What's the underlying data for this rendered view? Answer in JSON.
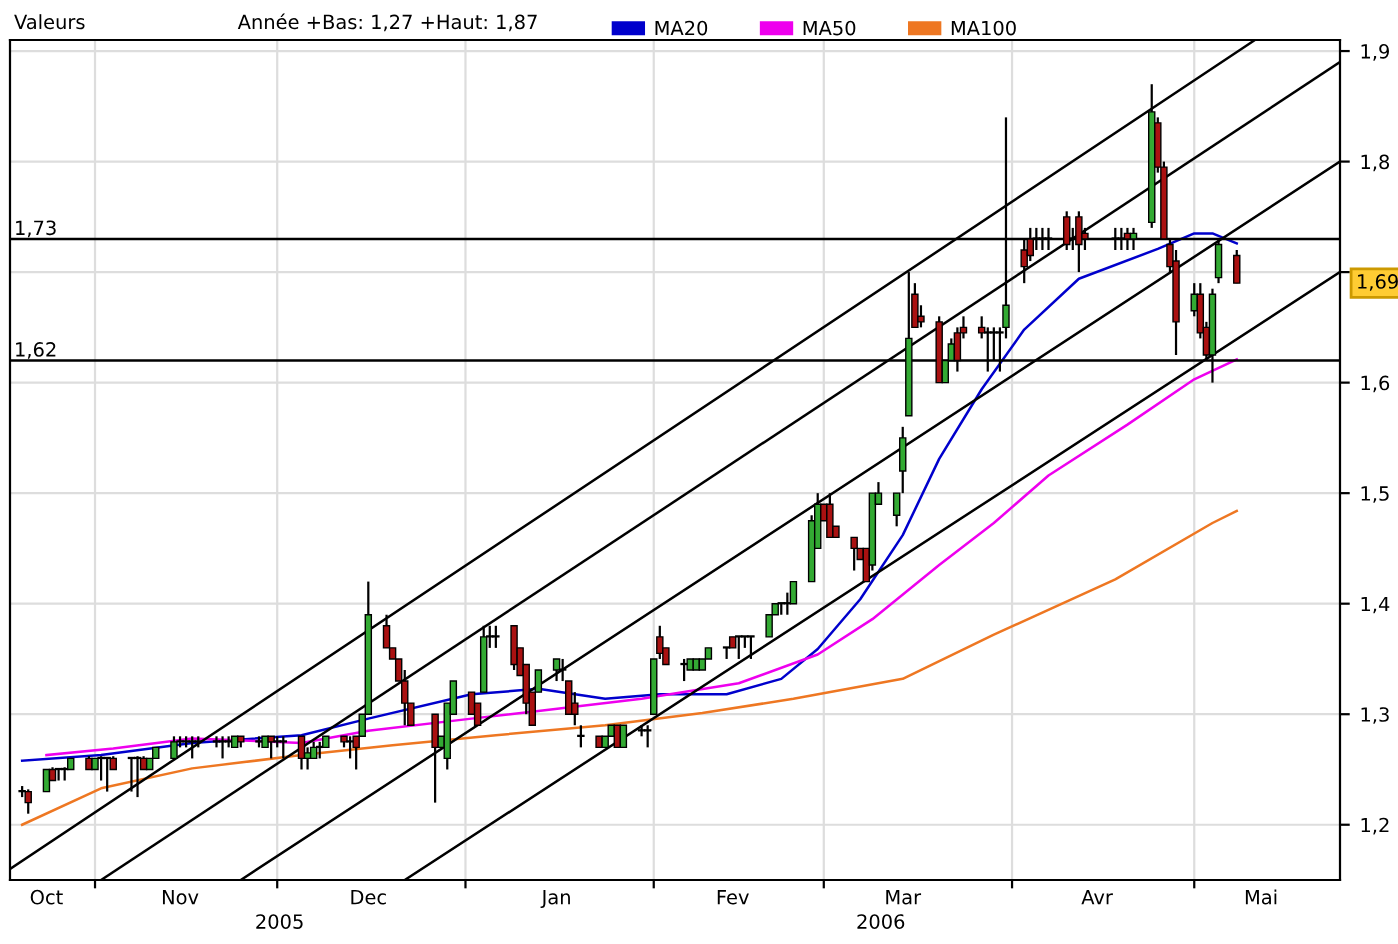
{
  "chart_data": {
    "type": "candlestick",
    "x": [
      "2005-10-20",
      "2005-10-21",
      "2005-10-24",
      "2005-10-25",
      "2005-10-26",
      "2005-10-27",
      "2005-10-28",
      "2005-10-31",
      "2005-11-01",
      "2005-11-02",
      "2005-11-03",
      "2005-11-04",
      "2005-11-07",
      "2005-11-08",
      "2005-11-09",
      "2005-11-10",
      "2005-11-11",
      "2005-11-14",
      "2005-11-15",
      "2005-11-16",
      "2005-11-17",
      "2005-11-18",
      "2005-11-21",
      "2005-11-22",
      "2005-11-23",
      "2005-11-24",
      "2005-11-25",
      "2005-11-28",
      "2005-11-29",
      "2005-11-30",
      "2005-12-01",
      "2005-12-02",
      "2005-12-05",
      "2005-12-06",
      "2005-12-07",
      "2005-12-08",
      "2005-12-09",
      "2005-12-12",
      "2005-12-13",
      "2005-12-14",
      "2005-12-15",
      "2005-12-16",
      "2005-12-19",
      "2005-12-20",
      "2005-12-21",
      "2005-12-22",
      "2005-12-23",
      "2005-12-27",
      "2005-12-28",
      "2005-12-29",
      "2005-12-30",
      "2006-01-02",
      "2006-01-03",
      "2006-01-04",
      "2006-01-05",
      "2006-01-06",
      "2006-01-09",
      "2006-01-10",
      "2006-01-11",
      "2006-01-12",
      "2006-01-13",
      "2006-01-16",
      "2006-01-17",
      "2006-01-18",
      "2006-01-19",
      "2006-01-20",
      "2006-01-23",
      "2006-01-24",
      "2006-01-25",
      "2006-01-26",
      "2006-01-27",
      "2006-01-30",
      "2006-01-31",
      "2006-02-01",
      "2006-02-02",
      "2006-02-03",
      "2006-02-06",
      "2006-02-07",
      "2006-02-08",
      "2006-02-09",
      "2006-02-10",
      "2006-02-13",
      "2006-02-14",
      "2006-02-15",
      "2006-02-16",
      "2006-02-17",
      "2006-02-20",
      "2006-02-21",
      "2006-02-22",
      "2006-02-23",
      "2006-02-24",
      "2006-02-27",
      "2006-02-28",
      "2006-03-01",
      "2006-03-02",
      "2006-03-03",
      "2006-03-06",
      "2006-03-07",
      "2006-03-08",
      "2006-03-09",
      "2006-03-10",
      "2006-03-13",
      "2006-03-14",
      "2006-03-15",
      "2006-03-16",
      "2006-03-17",
      "2006-03-20",
      "2006-03-21",
      "2006-03-22",
      "2006-03-23",
      "2006-03-24",
      "2006-03-27",
      "2006-03-28",
      "2006-03-29",
      "2006-03-30",
      "2006-03-31",
      "2006-04-03",
      "2006-04-04",
      "2006-04-05",
      "2006-04-06",
      "2006-04-07",
      "2006-04-10",
      "2006-04-11",
      "2006-04-12",
      "2006-04-13",
      "2006-04-18",
      "2006-04-19",
      "2006-04-20",
      "2006-04-21",
      "2006-04-24",
      "2006-04-25",
      "2006-04-26",
      "2006-04-27",
      "2006-04-28",
      "2006-05-01",
      "2006-05-02",
      "2006-05-03",
      "2006-05-04",
      "2006-05-05",
      "2006-05-08"
    ],
    "ohlc": [
      [
        1.23,
        1.235,
        1.225,
        1.23
      ],
      [
        1.23,
        1.232,
        1.21,
        1.22
      ],
      [
        1.23,
        1.25,
        1.23,
        1.25
      ],
      [
        1.25,
        1.252,
        1.24,
        1.24
      ],
      [
        1.25,
        1.25,
        1.24,
        1.25
      ],
      [
        1.25,
        1.252,
        1.24,
        1.25
      ],
      [
        1.25,
        1.26,
        1.25,
        1.26
      ],
      [
        1.26,
        1.262,
        1.25,
        1.25
      ],
      [
        1.25,
        1.26,
        1.25,
        1.26
      ],
      [
        1.26,
        1.262,
        1.24,
        1.26
      ],
      [
        1.26,
        1.26,
        1.23,
        1.26
      ],
      [
        1.26,
        1.262,
        1.25,
        1.25
      ],
      [
        1.26,
        1.26,
        1.23,
        1.26
      ],
      [
        1.26,
        1.262,
        1.225,
        1.26
      ],
      [
        1.26,
        1.262,
        1.25,
        1.25
      ],
      [
        1.25,
        1.26,
        1.25,
        1.26
      ],
      [
        1.26,
        1.27,
        1.26,
        1.27
      ],
      [
        1.26,
        1.28,
        1.26,
        1.275
      ],
      [
        1.275,
        1.28,
        1.27,
        1.275
      ],
      [
        1.275,
        1.28,
        1.27,
        1.275
      ],
      [
        1.275,
        1.28,
        1.26,
        1.275
      ],
      [
        1.275,
        1.28,
        1.27,
        1.275
      ],
      [
        1.275,
        1.28,
        1.27,
        1.275
      ],
      [
        1.275,
        1.28,
        1.26,
        1.275
      ],
      [
        1.275,
        1.28,
        1.27,
        1.275
      ],
      [
        1.27,
        1.28,
        1.27,
        1.28
      ],
      [
        1.28,
        1.28,
        1.27,
        1.275
      ],
      [
        1.275,
        1.28,
        1.27,
        1.275
      ],
      [
        1.27,
        1.28,
        1.27,
        1.28
      ],
      [
        1.28,
        1.28,
        1.26,
        1.275
      ],
      [
        1.275,
        1.28,
        1.27,
        1.275
      ],
      [
        1.275,
        1.28,
        1.26,
        1.275
      ],
      [
        1.28,
        1.28,
        1.25,
        1.26
      ],
      [
        1.26,
        1.27,
        1.25,
        1.265
      ],
      [
        1.26,
        1.275,
        1.26,
        1.27
      ],
      [
        1.27,
        1.275,
        1.26,
        1.27
      ],
      [
        1.27,
        1.28,
        1.27,
        1.28
      ],
      [
        1.28,
        1.28,
        1.27,
        1.275
      ],
      [
        1.275,
        1.28,
        1.26,
        1.275
      ],
      [
        1.28,
        1.28,
        1.25,
        1.27
      ],
      [
        1.28,
        1.3,
        1.28,
        1.3
      ],
      [
        1.3,
        1.42,
        1.3,
        1.39
      ],
      [
        1.38,
        1.39,
        1.36,
        1.36
      ],
      [
        1.36,
        1.36,
        1.35,
        1.35
      ],
      [
        1.35,
        1.35,
        1.33,
        1.33
      ],
      [
        1.33,
        1.34,
        1.29,
        1.31
      ],
      [
        1.31,
        1.31,
        1.29,
        1.29
      ],
      [
        1.3,
        1.3,
        1.22,
        1.27
      ],
      [
        1.27,
        1.28,
        1.27,
        1.28
      ],
      [
        1.26,
        1.31,
        1.25,
        1.31
      ],
      [
        1.3,
        1.33,
        1.3,
        1.33
      ],
      [
        1.32,
        1.32,
        1.3,
        1.3
      ],
      [
        1.31,
        1.31,
        1.29,
        1.29
      ],
      [
        1.32,
        1.38,
        1.32,
        1.37
      ],
      [
        1.37,
        1.38,
        1.36,
        1.37
      ],
      [
        1.37,
        1.38,
        1.36,
        1.37
      ],
      [
        1.38,
        1.38,
        1.34,
        1.345
      ],
      [
        1.36,
        1.36,
        1.335,
        1.335
      ],
      [
        1.345,
        1.345,
        1.3,
        1.31
      ],
      [
        1.32,
        1.32,
        1.29,
        1.29
      ],
      [
        1.32,
        1.34,
        1.32,
        1.34
      ],
      [
        1.34,
        1.35,
        1.33,
        1.35
      ],
      [
        1.34,
        1.35,
        1.33,
        1.34
      ],
      [
        1.33,
        1.33,
        1.3,
        1.3
      ],
      [
        1.31,
        1.32,
        1.29,
        1.3
      ],
      [
        1.28,
        1.29,
        1.27,
        1.28
      ],
      [
        1.28,
        1.28,
        1.27,
        1.27
      ],
      [
        1.27,
        1.28,
        1.27,
        1.28
      ],
      [
        1.28,
        1.29,
        1.28,
        1.29
      ],
      [
        1.29,
        1.29,
        1.27,
        1.27
      ],
      [
        1.27,
        1.29,
        1.27,
        1.29
      ],
      [
        1.285,
        1.29,
        1.28,
        1.285
      ],
      [
        1.285,
        1.29,
        1.27,
        1.285
      ],
      [
        1.3,
        1.35,
        1.3,
        1.35
      ],
      [
        1.37,
        1.38,
        1.35,
        1.355
      ],
      [
        1.36,
        1.36,
        1.345,
        1.345
      ],
      [
        1.345,
        1.35,
        1.33,
        1.345
      ],
      [
        1.34,
        1.35,
        1.34,
        1.35
      ],
      [
        1.34,
        1.35,
        1.34,
        1.35
      ],
      [
        1.34,
        1.35,
        1.34,
        1.35
      ],
      [
        1.35,
        1.36,
        1.35,
        1.36
      ],
      [
        1.36,
        1.36,
        1.35,
        1.36
      ],
      [
        1.37,
        1.37,
        1.36,
        1.36
      ],
      [
        1.37,
        1.37,
        1.35,
        1.37
      ],
      [
        1.37,
        1.37,
        1.36,
        1.37
      ],
      [
        1.37,
        1.37,
        1.35,
        1.37
      ],
      [
        1.37,
        1.39,
        1.37,
        1.39
      ],
      [
        1.39,
        1.4,
        1.39,
        1.4
      ],
      [
        1.4,
        1.4,
        1.39,
        1.4
      ],
      [
        1.4,
        1.41,
        1.39,
        1.4
      ],
      [
        1.4,
        1.42,
        1.4,
        1.42
      ],
      [
        1.42,
        1.48,
        1.42,
        1.475
      ],
      [
        1.45,
        1.5,
        1.45,
        1.49
      ],
      [
        1.49,
        1.49,
        1.475,
        1.475
      ],
      [
        1.49,
        1.5,
        1.46,
        1.46
      ],
      [
        1.47,
        1.47,
        1.46,
        1.46
      ],
      [
        1.46,
        1.46,
        1.43,
        1.45
      ],
      [
        1.45,
        1.45,
        1.44,
        1.44
      ],
      [
        1.45,
        1.45,
        1.42,
        1.42
      ],
      [
        1.435,
        1.5,
        1.43,
        1.5
      ],
      [
        1.49,
        1.51,
        1.49,
        1.5
      ],
      [
        1.48,
        1.5,
        1.47,
        1.5
      ],
      [
        1.52,
        1.56,
        1.5,
        1.55
      ],
      [
        1.57,
        1.7,
        1.57,
        1.64
      ],
      [
        1.68,
        1.69,
        1.65,
        1.65
      ],
      [
        1.66,
        1.67,
        1.65,
        1.655
      ],
      [
        1.655,
        1.66,
        1.6,
        1.6
      ],
      [
        1.6,
        1.62,
        1.6,
        1.62
      ],
      [
        1.62,
        1.64,
        1.62,
        1.635
      ],
      [
        1.645,
        1.65,
        1.61,
        1.62
      ],
      [
        1.65,
        1.66,
        1.64,
        1.645
      ],
      [
        1.65,
        1.66,
        1.64,
        1.645
      ],
      [
        1.645,
        1.65,
        1.61,
        1.645
      ],
      [
        1.645,
        1.65,
        1.62,
        1.645
      ],
      [
        1.645,
        1.65,
        1.61,
        1.645
      ],
      [
        1.65,
        1.84,
        1.64,
        1.67
      ],
      [
        1.72,
        1.73,
        1.69,
        1.705
      ],
      [
        1.73,
        1.74,
        1.71,
        1.715
      ],
      [
        1.73,
        1.74,
        1.72,
        1.73
      ],
      [
        1.73,
        1.74,
        1.72,
        1.73
      ],
      [
        1.73,
        1.74,
        1.72,
        1.73
      ],
      [
        1.75,
        1.755,
        1.72,
        1.725
      ],
      [
        1.73,
        1.74,
        1.72,
        1.73
      ],
      [
        1.75,
        1.755,
        1.7,
        1.725
      ],
      [
        1.735,
        1.74,
        1.72,
        1.73
      ],
      [
        1.73,
        1.74,
        1.72,
        1.73
      ],
      [
        1.73,
        1.74,
        1.72,
        1.73
      ],
      [
        1.735,
        1.74,
        1.72,
        1.73
      ],
      [
        1.73,
        1.74,
        1.72,
        1.735
      ],
      [
        1.745,
        1.87,
        1.74,
        1.845
      ],
      [
        1.835,
        1.84,
        1.79,
        1.795
      ],
      [
        1.795,
        1.8,
        1.73,
        1.73
      ],
      [
        1.725,
        1.73,
        1.7,
        1.705
      ],
      [
        1.71,
        1.72,
        1.625,
        1.655
      ],
      [
        1.665,
        1.69,
        1.66,
        1.68
      ],
      [
        1.68,
        1.69,
        1.64,
        1.645
      ],
      [
        1.65,
        1.655,
        1.62,
        1.625
      ],
      [
        1.625,
        1.685,
        1.6,
        1.68
      ],
      [
        1.695,
        1.73,
        1.69,
        1.725
      ],
      [
        1.715,
        1.72,
        1.69,
        1.69
      ]
    ],
    "series": [
      {
        "name": "MA20",
        "type": "line",
        "color": "#0000cc",
        "x": [
          "2005-10-20",
          "2005-11-02",
          "2005-11-17",
          "2005-12-05",
          "2005-12-16",
          "2006-01-02",
          "2006-01-13",
          "2006-01-24",
          "2006-02-02",
          "2006-02-13",
          "2006-02-22",
          "2006-02-28",
          "2006-03-07",
          "2006-03-14",
          "2006-03-20",
          "2006-03-27",
          "2006-04-03",
          "2006-04-12",
          "2006-04-25",
          "2006-05-01",
          "2006-05-04",
          "2006-05-08"
        ],
        "values": [
          1.258,
          1.263,
          1.274,
          1.281,
          1.296,
          1.318,
          1.323,
          1.314,
          1.318,
          1.318,
          1.332,
          1.359,
          1.404,
          1.462,
          1.531,
          1.594,
          1.648,
          1.694,
          1.721,
          1.735,
          1.735,
          1.726
        ]
      },
      {
        "name": "MA50",
        "type": "line",
        "color": "#ee00ee",
        "x": [
          "2005-10-24",
          "2005-11-04",
          "2005-11-17",
          "2005-12-05",
          "2005-12-16",
          "2006-01-02",
          "2006-01-13",
          "2006-01-30",
          "2006-02-15",
          "2006-02-28",
          "2006-03-09",
          "2006-03-20",
          "2006-03-29",
          "2006-04-07",
          "2006-04-20",
          "2006-05-01",
          "2006-05-08"
        ],
        "values": [
          1.263,
          1.269,
          1.278,
          1.274,
          1.285,
          1.296,
          1.303,
          1.314,
          1.328,
          1.354,
          1.386,
          1.435,
          1.473,
          1.516,
          1.562,
          1.603,
          1.621
        ]
      },
      {
        "name": "MA100",
        "type": "line",
        "color": "#ee7722",
        "x": [
          "2005-10-20",
          "2005-11-02",
          "2005-11-17",
          "2005-12-05",
          "2005-12-20",
          "2006-01-06",
          "2006-01-24",
          "2006-02-09",
          "2006-02-24",
          "2006-03-14",
          "2006-03-29",
          "2006-04-18",
          "2006-05-04",
          "2006-05-08"
        ],
        "values": [
          1.2,
          1.233,
          1.251,
          1.263,
          1.272,
          1.281,
          1.29,
          1.301,
          1.314,
          1.332,
          1.372,
          1.422,
          1.473,
          1.484
        ]
      },
      {
        "type": "line",
        "color": "#000000",
        "x": [
          "2005-10-18",
          "2006-05-11"
        ],
        "values": [
          1.16,
          1.91
        ]
      },
      {
        "type": "line",
        "color": "#000000",
        "x": [
          "2005-11-02",
          "2006-05-25"
        ],
        "values": [
          1.15,
          1.89
        ]
      },
      {
        "type": "line",
        "color": "#000000",
        "x": [
          "2005-11-25",
          "2006-05-25"
        ],
        "values": [
          1.15,
          1.8
        ]
      },
      {
        "type": "line",
        "color": "#000000",
        "x": [
          "2005-12-22",
          "2006-05-25"
        ],
        "values": [
          1.15,
          1.7
        ]
      }
    ],
    "ref_lines": [
      {
        "axis": "y",
        "value": 1.73,
        "label": "1,73",
        "color": "#000000"
      },
      {
        "axis": "y",
        "value": 1.62,
        "label": "1,62",
        "color": "#000000"
      }
    ],
    "annotations": [
      "Valeurs",
      "Année +Bas: 1,27 +Haut: 1,87",
      "2005",
      "2006",
      "1,69"
    ],
    "xlim": [
      "2005-10-18",
      "2006-05-25"
    ],
    "xticks": [
      {
        "value": "2005-11-01",
        "label": null
      },
      {
        "value": "2005-12-01",
        "label": null
      },
      {
        "value": "2006-01-01",
        "label": null
      },
      {
        "value": "2006-02-01",
        "label": null
      },
      {
        "value": "2006-03-01",
        "label": null
      },
      {
        "value": "2006-04-01",
        "label": null
      },
      {
        "value": "2006-05-01",
        "label": null
      },
      {
        "value": "2005-10-24",
        "label": "Oct"
      },
      {
        "value": "2005-11-15",
        "label": "Nov"
      },
      {
        "value": "2005-12-16",
        "label": "Dec"
      },
      {
        "value": "2006-01-16",
        "label": "Jan"
      },
      {
        "value": "2006-02-14",
        "label": "Fev"
      },
      {
        "value": "2006-03-14",
        "label": "Mar"
      },
      {
        "value": "2006-04-15",
        "label": "Avr"
      },
      {
        "value": "2006-05-12",
        "label": "Mai"
      }
    ],
    "ylim": [
      1.15,
      1.91
    ],
    "yticks": [
      {
        "value": 1.2,
        "label": "1,2"
      },
      {
        "value": 1.3,
        "label": "1,3"
      },
      {
        "value": 1.4,
        "label": "1,4"
      },
      {
        "value": 1.5,
        "label": "1,5"
      },
      {
        "value": 1.6,
        "label": "1,6"
      },
      {
        "value": 1.7,
        "label": null
      },
      {
        "value": 1.8,
        "label": "1,8"
      },
      {
        "value": 1.9,
        "label": "1,9"
      }
    ],
    "grid": true,
    "legend": "top",
    "marker": "none",
    "line_style": "solid"
  }
}
